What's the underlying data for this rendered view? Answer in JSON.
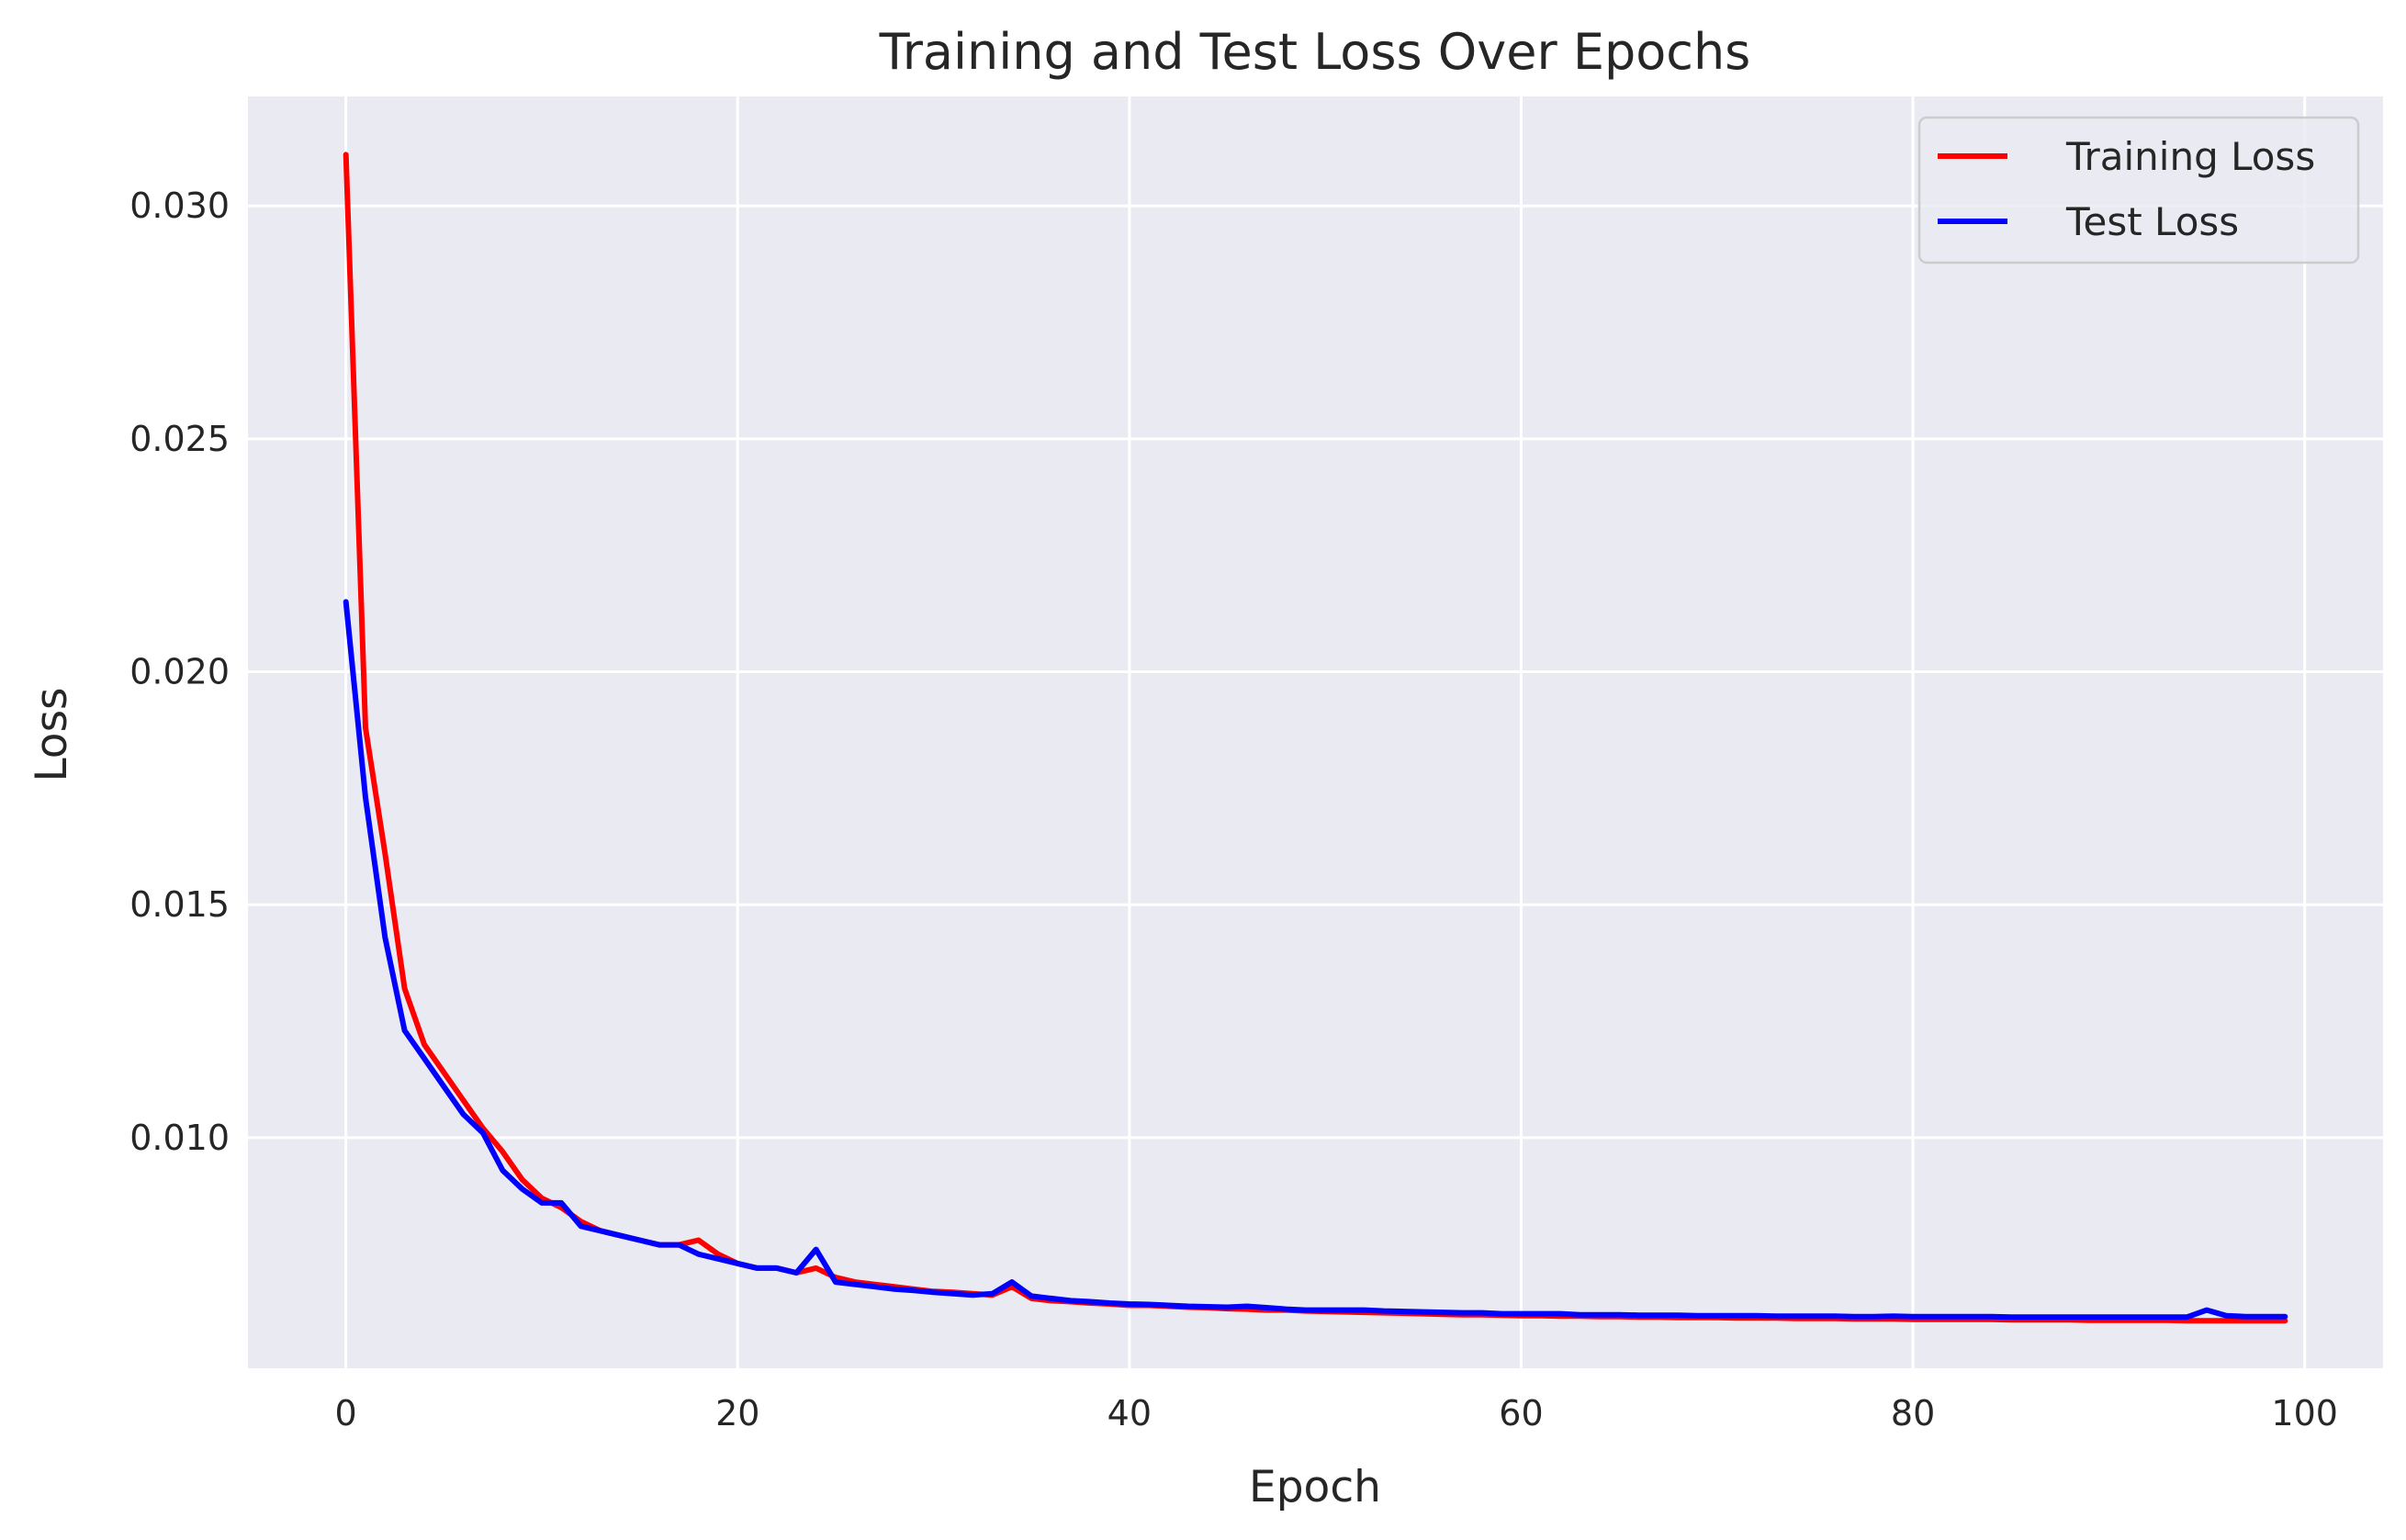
{
  "chart_data": {
    "type": "line",
    "title": "Training and Test Loss Over Epochs",
    "xlabel": "Epoch",
    "ylabel": "Loss",
    "xlim": [
      -5,
      104
    ],
    "ylim": [
      0.00505,
      0.03235
    ],
    "xticks": [
      0,
      20,
      40,
      60,
      80,
      100
    ],
    "yticks": [
      0.01,
      0.015,
      0.02,
      0.025,
      0.03
    ],
    "xtick_labels": [
      "0",
      "20",
      "40",
      "60",
      "80",
      "100"
    ],
    "ytick_labels": [
      "0.010",
      "0.015",
      "0.020",
      "0.025",
      "0.030"
    ],
    "grid": true,
    "legend_position": "top-right",
    "x": [
      0,
      1,
      2,
      3,
      4,
      5,
      6,
      7,
      8,
      9,
      10,
      11,
      12,
      13,
      14,
      15,
      16,
      17,
      18,
      19,
      20,
      21,
      22,
      23,
      24,
      25,
      26,
      27,
      28,
      29,
      30,
      31,
      32,
      33,
      34,
      35,
      36,
      37,
      38,
      39,
      40,
      41,
      42,
      43,
      44,
      45,
      46,
      47,
      48,
      49,
      50,
      51,
      52,
      53,
      54,
      55,
      56,
      57,
      58,
      59,
      60,
      61,
      62,
      63,
      64,
      65,
      66,
      67,
      68,
      69,
      70,
      71,
      72,
      73,
      74,
      75,
      76,
      77,
      78,
      79,
      80,
      81,
      82,
      83,
      84,
      85,
      86,
      87,
      88,
      89,
      90,
      91,
      92,
      93,
      94,
      95,
      96,
      97,
      98,
      99
    ],
    "series": [
      {
        "name": "Training Loss",
        "color": "#ff0000",
        "values": [
          0.0311,
          0.0188,
          0.0161,
          0.0132,
          0.012,
          0.0114,
          0.0108,
          0.0102,
          0.0097,
          0.0091,
          0.0087,
          0.0085,
          0.0082,
          0.008,
          0.0079,
          0.0078,
          0.0077,
          0.0077,
          0.0078,
          0.0075,
          0.0073,
          0.0072,
          0.0072,
          0.0071,
          0.0072,
          0.007,
          0.0069,
          0.00685,
          0.0068,
          0.00675,
          0.0067,
          0.00668,
          0.00665,
          0.00662,
          0.0068,
          0.00655,
          0.0065,
          0.00648,
          0.00645,
          0.00643,
          0.0064,
          0.0064,
          0.00638,
          0.00636,
          0.00635,
          0.00633,
          0.00632,
          0.0063,
          0.0063,
          0.00628,
          0.00627,
          0.00626,
          0.00625,
          0.00624,
          0.00623,
          0.00622,
          0.00621,
          0.0062,
          0.0062,
          0.00619,
          0.00618,
          0.00618,
          0.00617,
          0.00617,
          0.00616,
          0.00616,
          0.00615,
          0.00615,
          0.00614,
          0.00614,
          0.00614,
          0.00613,
          0.00613,
          0.00613,
          0.00612,
          0.00612,
          0.00612,
          0.00611,
          0.00611,
          0.00611,
          0.0061,
          0.0061,
          0.0061,
          0.0061,
          0.0061,
          0.00609,
          0.00609,
          0.00609,
          0.00609,
          0.00608,
          0.00608,
          0.00608,
          0.00608,
          0.00608,
          0.00607,
          0.00607,
          0.00607,
          0.00607,
          0.00607,
          0.00607
        ]
      },
      {
        "name": "Test Loss",
        "color": "#0000ff",
        "values": [
          0.0215,
          0.0173,
          0.0143,
          0.0123,
          0.0117,
          0.0111,
          0.0105,
          0.0101,
          0.0093,
          0.0089,
          0.0086,
          0.0086,
          0.0081,
          0.008,
          0.0079,
          0.0078,
          0.0077,
          0.0077,
          0.0075,
          0.0074,
          0.0073,
          0.0072,
          0.0072,
          0.0071,
          0.0076,
          0.0069,
          0.00685,
          0.0068,
          0.00675,
          0.00672,
          0.00668,
          0.00665,
          0.00662,
          0.00665,
          0.0069,
          0.0066,
          0.00655,
          0.0065,
          0.00648,
          0.00645,
          0.00643,
          0.00642,
          0.0064,
          0.00638,
          0.00637,
          0.00636,
          0.00638,
          0.00635,
          0.00632,
          0.0063,
          0.0063,
          0.0063,
          0.0063,
          0.00628,
          0.00627,
          0.00626,
          0.00625,
          0.00624,
          0.00624,
          0.00622,
          0.00622,
          0.00622,
          0.00622,
          0.0062,
          0.0062,
          0.0062,
          0.00619,
          0.00619,
          0.00619,
          0.00618,
          0.00618,
          0.00618,
          0.00618,
          0.00617,
          0.00617,
          0.00617,
          0.00617,
          0.00616,
          0.00616,
          0.00617,
          0.00616,
          0.00616,
          0.00616,
          0.00616,
          0.00616,
          0.00615,
          0.00615,
          0.00615,
          0.00615,
          0.00615,
          0.00615,
          0.00615,
          0.00615,
          0.00615,
          0.00615,
          0.0063,
          0.00618,
          0.00616,
          0.00616,
          0.00616
        ]
      }
    ]
  }
}
